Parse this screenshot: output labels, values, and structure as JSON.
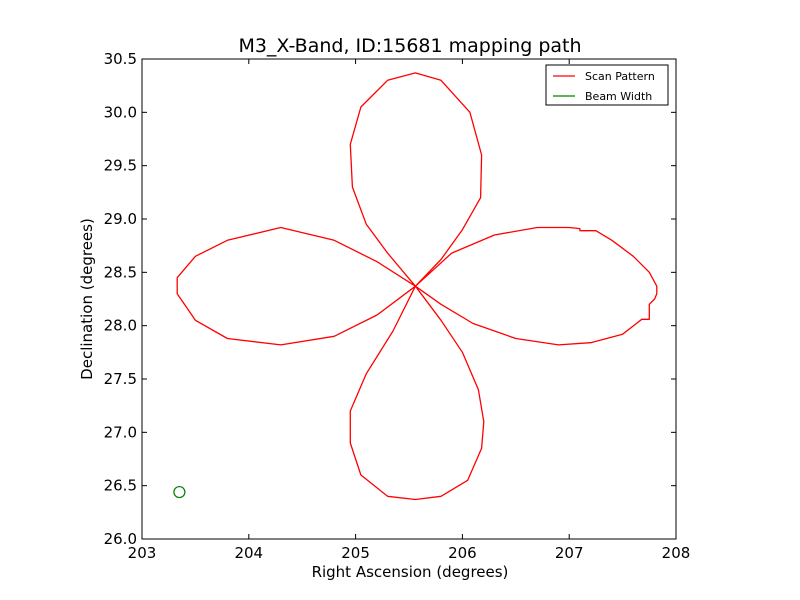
{
  "chart_data": {
    "type": "line",
    "title": "M3_X-Band, ID:15681 mapping path",
    "xlabel": "Right Ascension (degrees)",
    "ylabel": "Declination (degrees)",
    "xlim": [
      203,
      208
    ],
    "ylim": [
      26.0,
      30.5
    ],
    "xticks": [
      203,
      204,
      205,
      206,
      207,
      208
    ],
    "xtick_labels": [
      "203",
      "204",
      "205",
      "206",
      "207",
      "208"
    ],
    "yticks": [
      26.0,
      26.5,
      27.0,
      27.5,
      28.0,
      28.5,
      29.0,
      29.5,
      30.0,
      30.5
    ],
    "ytick_labels": [
      "26.0",
      "26.5",
      "27.0",
      "27.5",
      "28.0",
      "28.5",
      "29.0",
      "29.5",
      "30.0",
      "30.5"
    ],
    "grid": false,
    "legend_position": "top-right",
    "series": [
      {
        "name": "Scan Pattern",
        "color": "#ff0000",
        "x": [
          205.56,
          205.9,
          206.3,
          206.7,
          207.0,
          207.1,
          207.1,
          207.25,
          207.4,
          207.6,
          207.75,
          207.82,
          207.82,
          207.8,
          207.75,
          207.75,
          207.68,
          207.5,
          207.2,
          206.9,
          206.5,
          206.1,
          205.8,
          205.56,
          205.8,
          206.0,
          206.15,
          206.2,
          206.18,
          206.05,
          205.8,
          205.56,
          205.3,
          205.05,
          204.95,
          204.95,
          205.1,
          205.35,
          205.56,
          205.2,
          204.8,
          204.3,
          203.8,
          203.5,
          203.33,
          203.33,
          203.5,
          203.8,
          204.3,
          204.8,
          205.2,
          205.56,
          205.3,
          205.1,
          204.97,
          204.95,
          205.05,
          205.3,
          205.56,
          205.8,
          206.07,
          206.18,
          206.17,
          206.0,
          205.8,
          205.56
        ],
        "y": [
          28.37,
          28.68,
          28.85,
          28.92,
          28.92,
          28.91,
          28.89,
          28.89,
          28.8,
          28.65,
          28.5,
          28.37,
          28.3,
          28.25,
          28.2,
          28.06,
          28.06,
          27.92,
          27.84,
          27.82,
          27.88,
          28.02,
          28.2,
          28.37,
          28.05,
          27.75,
          27.4,
          27.1,
          26.85,
          26.55,
          26.4,
          26.37,
          26.4,
          26.6,
          26.9,
          27.2,
          27.55,
          27.95,
          28.37,
          28.6,
          28.8,
          28.92,
          28.8,
          28.65,
          28.45,
          28.3,
          28.05,
          27.88,
          27.82,
          27.9,
          28.1,
          28.37,
          28.68,
          28.95,
          29.3,
          29.7,
          30.05,
          30.3,
          30.37,
          30.3,
          30.0,
          29.6,
          29.2,
          28.9,
          28.62,
          28.37
        ]
      },
      {
        "name": "Beam Width",
        "color": "#008000",
        "marker": "circle",
        "x": [
          203.35
        ],
        "y": [
          26.44
        ]
      }
    ]
  }
}
